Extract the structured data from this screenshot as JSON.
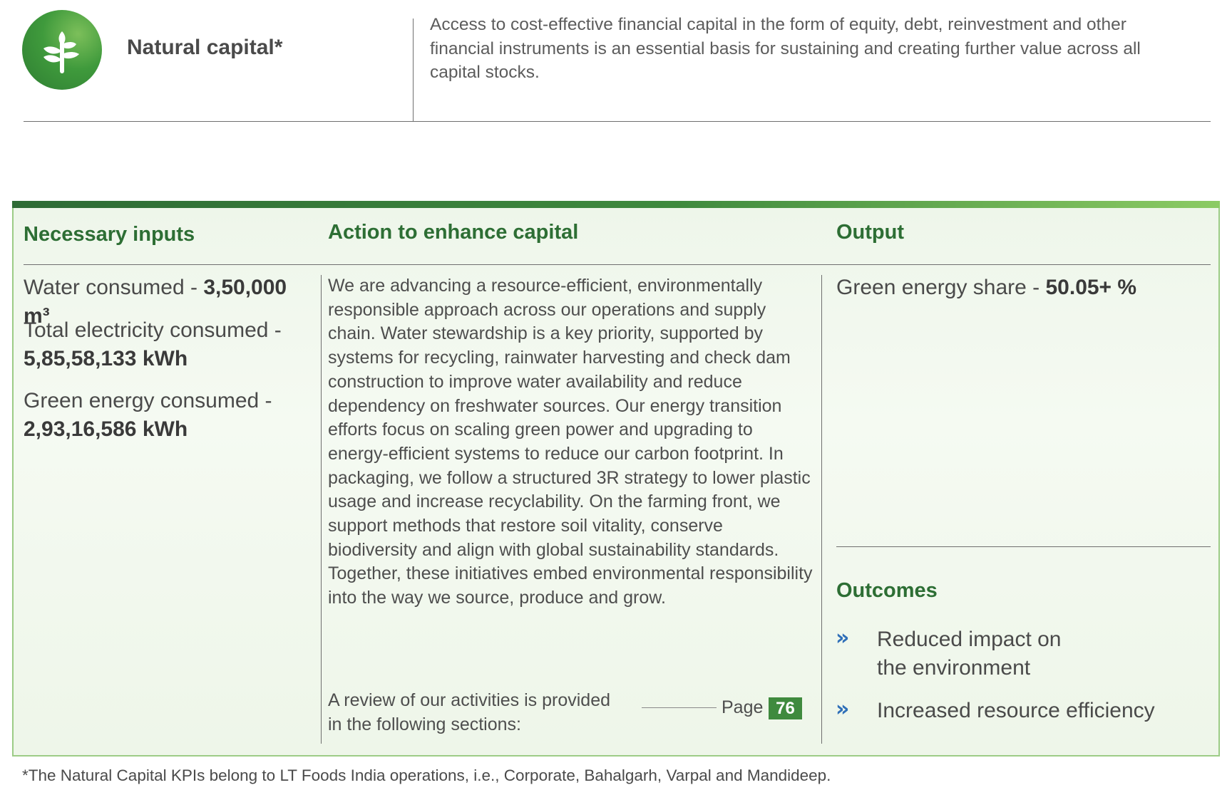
{
  "header": {
    "title": "Natural capital*",
    "description": "Access to cost-effective financial capital in the form of equity, debt, reinvestment and other financial instruments is an essential basis for sustaining and creating further value across all capital stocks."
  },
  "columns": {
    "inputs_heading": "Necessary inputs",
    "action_heading": "Action to enhance capital",
    "output_heading": "Output"
  },
  "inputs": [
    {
      "label": "Water consumed - ",
      "value": "3,50,000 m³"
    },
    {
      "label": "Total electricity consumed - ",
      "value": "5,85,58,133 kWh"
    },
    {
      "label": "Green energy consumed - ",
      "value": "2,93,16,586 kWh"
    }
  ],
  "action": {
    "text": "We are advancing a resource-efficient, environmentally responsible approach across our operations and supply chain. Water stewardship is a key priority, supported by systems for recycling, rainwater harvesting and check dam construction to improve water availability and reduce dependency on freshwater sources. Our energy transition efforts focus on scaling green power and upgrading to energy-efficient systems to reduce our carbon footprint. In packaging, we follow a structured 3R strategy to lower plastic usage and increase recyclability. On the farming front, we support methods that restore soil vitality, conserve biodiversity and align with global sustainability standards. Together, these initiatives embed environmental responsibility into the way we source, produce and grow.",
    "review_text": "A review of our activities is provided in the following sections:",
    "page_label": "Page",
    "page_number": "76"
  },
  "output": {
    "label": "Green energy share - ",
    "value": "50.05+ %"
  },
  "outcomes": {
    "heading": "Outcomes",
    "chevron": "»",
    "items": [
      "Reduced impact on the environment",
      "Increased resource efficiency"
    ]
  },
  "footnote": "*The Natural Capital KPIs belong to LT Foods India operations, i.e., Corporate, Bahalgarh, Varpal and Mandideep.",
  "colors": {
    "accent_green": "#2d6e34",
    "badge_green": "#3f8a3e",
    "chevron_blue": "#2f6fb8"
  },
  "icons": {
    "logo": "plant-sprout-icon"
  }
}
